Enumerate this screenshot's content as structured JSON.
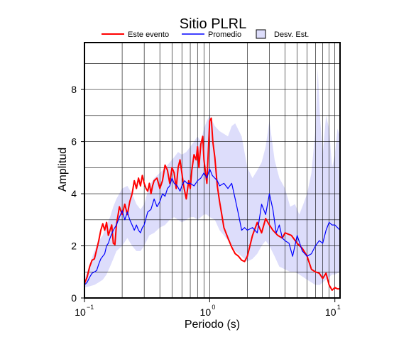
{
  "chart_data": {
    "type": "line",
    "title": "Sitio PLRL",
    "xlabel": "Periodo (s)",
    "ylabel": "Amplitud",
    "x_scale": "log",
    "xlim": [
      0.1,
      11
    ],
    "ylim": [
      0,
      9.8
    ],
    "grid": true,
    "legend_position": "top",
    "legend": [
      {
        "label": "Este evento",
        "color": "#ff0000",
        "kind": "line"
      },
      {
        "label": "Promedio",
        "color": "#0000ff",
        "kind": "line"
      },
      {
        "label": "Desv. Est.",
        "color": "#ddddfb",
        "kind": "patch"
      }
    ],
    "x_ticks": [
      {
        "value": 0.1,
        "base": "10",
        "exp": "−1"
      },
      {
        "value": 1,
        "base": "10",
        "exp": "0"
      },
      {
        "value": 10,
        "base": "10",
        "exp": "1"
      }
    ],
    "y_ticks": [
      0,
      2,
      4,
      6,
      8
    ],
    "series": [
      {
        "name": "Este evento",
        "color": "#ff0000",
        "x": [
          0.1,
          0.105,
          0.11,
          0.115,
          0.12,
          0.125,
          0.13,
          0.135,
          0.14,
          0.145,
          0.15,
          0.155,
          0.16,
          0.165,
          0.17,
          0.175,
          0.18,
          0.19,
          0.2,
          0.21,
          0.22,
          0.23,
          0.24,
          0.25,
          0.26,
          0.27,
          0.28,
          0.29,
          0.3,
          0.31,
          0.32,
          0.33,
          0.34,
          0.35,
          0.36,
          0.38,
          0.4,
          0.42,
          0.44,
          0.46,
          0.48,
          0.5,
          0.52,
          0.54,
          0.56,
          0.58,
          0.6,
          0.62,
          0.65,
          0.68,
          0.7,
          0.72,
          0.75,
          0.78,
          0.8,
          0.82,
          0.85,
          0.88,
          0.9,
          0.95,
          1.0,
          1.03,
          1.06,
          1.1,
          1.15,
          1.2,
          1.25,
          1.3,
          1.4,
          1.5,
          1.6,
          1.7,
          1.8,
          1.9,
          2.0,
          2.2,
          2.4,
          2.6,
          2.8,
          3.0,
          3.2,
          3.5,
          3.8,
          4.0,
          4.5,
          5.0,
          5.5,
          6.0,
          6.5,
          7.0,
          7.5,
          8.0,
          8.5,
          9.0,
          9.5,
          10.0,
          10.5,
          11.0
        ],
        "values": [
          0.55,
          0.8,
          1.2,
          1.45,
          1.5,
          1.85,
          2.2,
          2.6,
          2.85,
          2.6,
          2.9,
          2.4,
          2.6,
          2.8,
          2.1,
          2.05,
          2.8,
          3.5,
          3.2,
          3.6,
          3.2,
          3.7,
          4.0,
          4.5,
          4.2,
          4.6,
          4.3,
          4.7,
          4.4,
          4.2,
          4.1,
          4.4,
          4.0,
          4.3,
          4.5,
          4.6,
          4.2,
          4.5,
          5.1,
          4.9,
          4.4,
          5.0,
          4.8,
          4.2,
          5.0,
          5.3,
          4.8,
          4.3,
          3.8,
          4.5,
          4.2,
          4.9,
          5.5,
          5.3,
          5.8,
          5.0,
          5.9,
          6.2,
          5.3,
          4.4,
          6.8,
          6.9,
          6.0,
          5.4,
          4.3,
          3.7,
          3.2,
          2.7,
          2.3,
          1.95,
          1.7,
          1.6,
          1.45,
          1.4,
          1.6,
          2.4,
          2.9,
          2.5,
          3.05,
          2.8,
          2.6,
          2.4,
          2.3,
          2.5,
          2.4,
          2.1,
          1.9,
          1.6,
          1.1,
          1.0,
          0.95,
          0.75,
          0.95,
          0.5,
          0.3,
          0.4,
          0.35,
          0.35
        ]
      },
      {
        "name": "Promedio",
        "color": "#0000ff",
        "x": [
          0.1,
          0.105,
          0.11,
          0.115,
          0.12,
          0.125,
          0.13,
          0.135,
          0.14,
          0.145,
          0.15,
          0.155,
          0.16,
          0.17,
          0.18,
          0.19,
          0.2,
          0.21,
          0.22,
          0.23,
          0.24,
          0.25,
          0.26,
          0.27,
          0.28,
          0.29,
          0.3,
          0.32,
          0.34,
          0.36,
          0.38,
          0.4,
          0.42,
          0.44,
          0.46,
          0.48,
          0.5,
          0.52,
          0.55,
          0.58,
          0.6,
          0.63,
          0.66,
          0.7,
          0.75,
          0.8,
          0.85,
          0.9,
          0.95,
          1.0,
          1.05,
          1.1,
          1.15,
          1.2,
          1.3,
          1.4,
          1.5,
          1.6,
          1.7,
          1.8,
          1.9,
          2.0,
          2.2,
          2.4,
          2.6,
          2.8,
          3.0,
          3.2,
          3.4,
          3.6,
          3.8,
          4.0,
          4.3,
          4.6,
          5.0,
          5.5,
          6.0,
          6.5,
          7.0,
          7.5,
          8.0,
          8.5,
          9.0,
          9.5,
          10.0,
          10.5,
          11.0
        ],
        "values": [
          0.5,
          0.6,
          0.8,
          0.95,
          1.0,
          1.05,
          1.3,
          1.5,
          1.6,
          1.7,
          2.0,
          2.1,
          2.3,
          2.6,
          2.8,
          3.1,
          3.35,
          3.0,
          3.3,
          3.0,
          2.8,
          2.6,
          2.8,
          2.6,
          2.5,
          2.7,
          2.8,
          3.3,
          3.4,
          3.8,
          3.5,
          3.7,
          4.0,
          3.9,
          4.2,
          4.3,
          4.6,
          4.4,
          4.3,
          4.1,
          4.3,
          4.5,
          4.4,
          4.4,
          4.3,
          4.5,
          4.6,
          4.8,
          4.6,
          4.95,
          4.7,
          4.6,
          4.5,
          4.3,
          4.4,
          4.2,
          4.4,
          3.8,
          3.2,
          2.6,
          2.7,
          2.6,
          2.7,
          2.5,
          3.6,
          3.2,
          4.0,
          3.4,
          2.5,
          2.8,
          2.3,
          2.2,
          2.1,
          1.6,
          2.4,
          1.8,
          1.6,
          1.7,
          2.0,
          2.2,
          2.1,
          2.6,
          2.9,
          2.8,
          2.8,
          2.7,
          2.6
        ]
      },
      {
        "name": "Desv. Est.",
        "color": "#ddddfb",
        "kind": "band",
        "x": [
          0.1,
          0.11,
          0.12,
          0.13,
          0.14,
          0.15,
          0.16,
          0.17,
          0.18,
          0.2,
          0.22,
          0.24,
          0.26,
          0.28,
          0.3,
          0.33,
          0.36,
          0.4,
          0.44,
          0.48,
          0.52,
          0.56,
          0.6,
          0.65,
          0.7,
          0.75,
          0.8,
          0.85,
          0.9,
          0.95,
          1.0,
          1.1,
          1.2,
          1.3,
          1.4,
          1.5,
          1.6,
          1.8,
          2.0,
          2.2,
          2.4,
          2.6,
          2.8,
          3.0,
          3.3,
          3.6,
          4.0,
          4.4,
          4.8,
          5.2,
          5.6,
          6.0,
          6.5,
          7.0,
          7.3,
          7.6,
          8.0,
          8.5,
          9.0,
          9.5,
          10.0,
          10.5,
          11.0
        ],
        "upper": [
          0.7,
          1.3,
          1.8,
          2.2,
          2.4,
          2.8,
          3.1,
          3.5,
          3.8,
          4.2,
          4.3,
          4.0,
          3.6,
          3.4,
          3.6,
          4.3,
          4.6,
          4.8,
          5.0,
          5.2,
          5.4,
          5.6,
          5.5,
          5.6,
          5.8,
          6.0,
          6.2,
          6.0,
          6.5,
          6.8,
          7.0,
          6.6,
          6.4,
          6.3,
          6.2,
          6.6,
          6.7,
          6.2,
          5.0,
          4.6,
          4.9,
          5.2,
          5.8,
          6.8,
          5.3,
          4.6,
          4.2,
          3.5,
          3.6,
          3.2,
          3.6,
          4.0,
          4.8,
          6.5,
          8.8,
          7.0,
          5.5,
          7.0,
          6.5,
          5.0,
          5.5,
          6.5,
          6.2
        ],
        "lower": [
          0.4,
          0.45,
          0.5,
          0.6,
          0.7,
          0.9,
          1.2,
          1.5,
          1.8,
          2.0,
          2.3,
          2.0,
          1.8,
          1.8,
          2.0,
          2.4,
          2.5,
          2.7,
          2.8,
          3.0,
          3.1,
          3.0,
          2.9,
          3.0,
          3.1,
          3.1,
          3.0,
          3.1,
          3.2,
          3.2,
          3.1,
          3.0,
          2.6,
          2.4,
          2.2,
          2.0,
          1.8,
          1.6,
          1.4,
          1.5,
          1.7,
          2.0,
          2.2,
          2.0,
          1.6,
          1.2,
          1.1,
          1.0,
          1.0,
          0.9,
          0.8,
          0.7,
          0.6,
          0.5,
          0.5,
          0.5,
          0.6,
          0.7,
          0.8,
          0.9,
          0.9,
          0.95,
          1.0
        ]
      }
    ]
  }
}
